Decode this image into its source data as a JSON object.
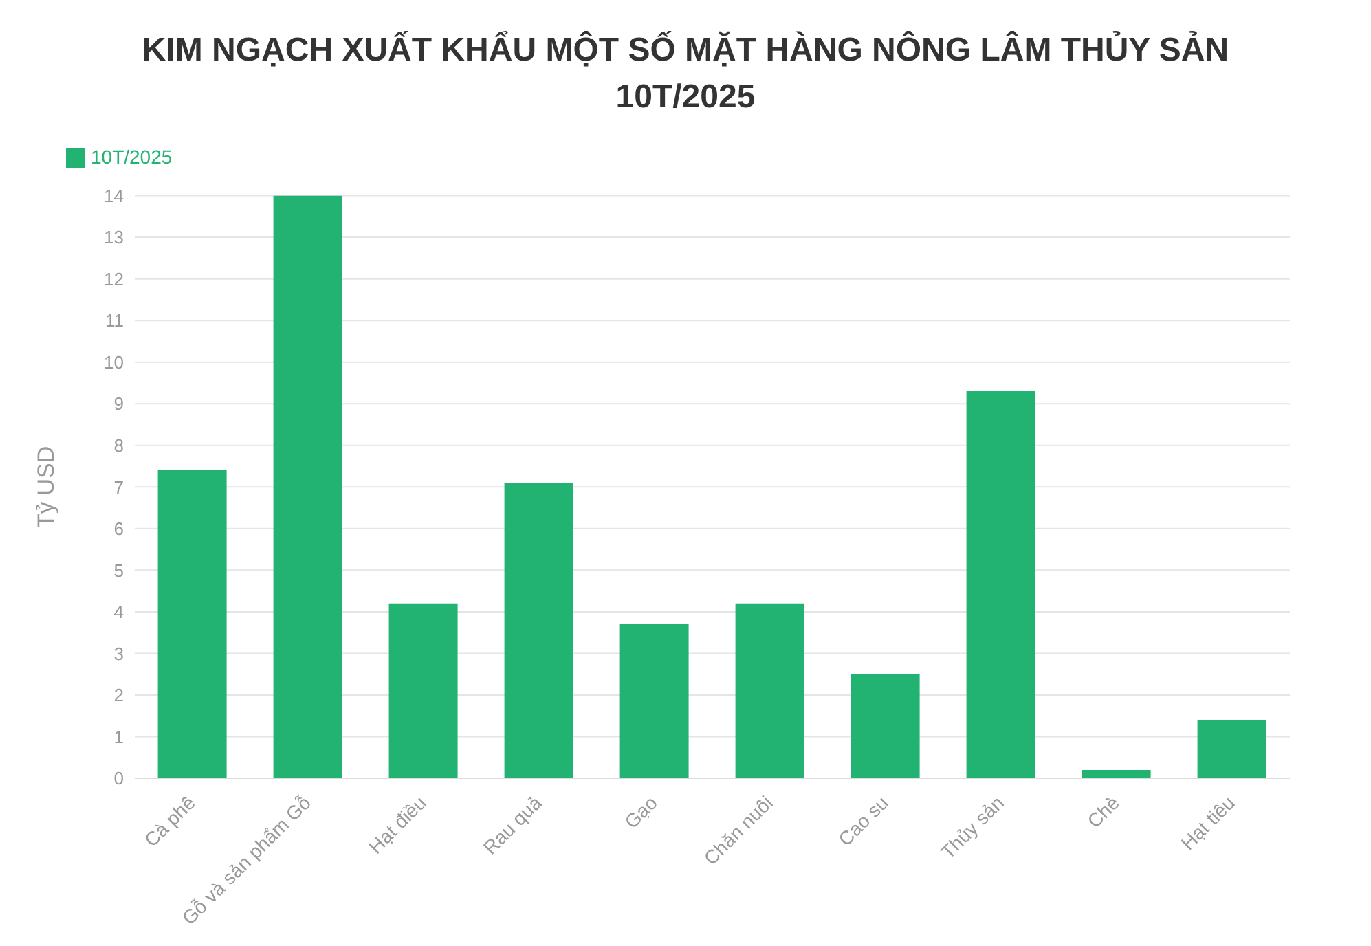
{
  "chart_data": {
    "type": "bar",
    "title": "KIM NGẠCH XUẤT KHẨU MỘT SỐ MẶT HÀNG NÔNG LÂM THỦY SẢN 10T/2025",
    "ylabel": "Tỷ USD",
    "categories": [
      "Cà phê",
      "Gỗ và sản phẩm Gỗ",
      "Hạt điều",
      "Rau quả",
      "Gạo",
      "Chăn nuôi",
      "Cao su",
      "Thủy sản",
      "Chè",
      "Hạt tiêu"
    ],
    "series": [
      {
        "name": "10T/2025",
        "color": "#22b373",
        "values": [
          7.4,
          14,
          4.2,
          7.1,
          3.7,
          4.2,
          2.5,
          9.3,
          0.2,
          1.4
        ]
      }
    ],
    "ylim": [
      0,
      14
    ],
    "yticks": [
      0,
      1,
      2,
      3,
      4,
      5,
      6,
      7,
      8,
      9,
      10,
      11,
      12,
      13,
      14
    ],
    "grid": "y",
    "legend": "top left"
  }
}
